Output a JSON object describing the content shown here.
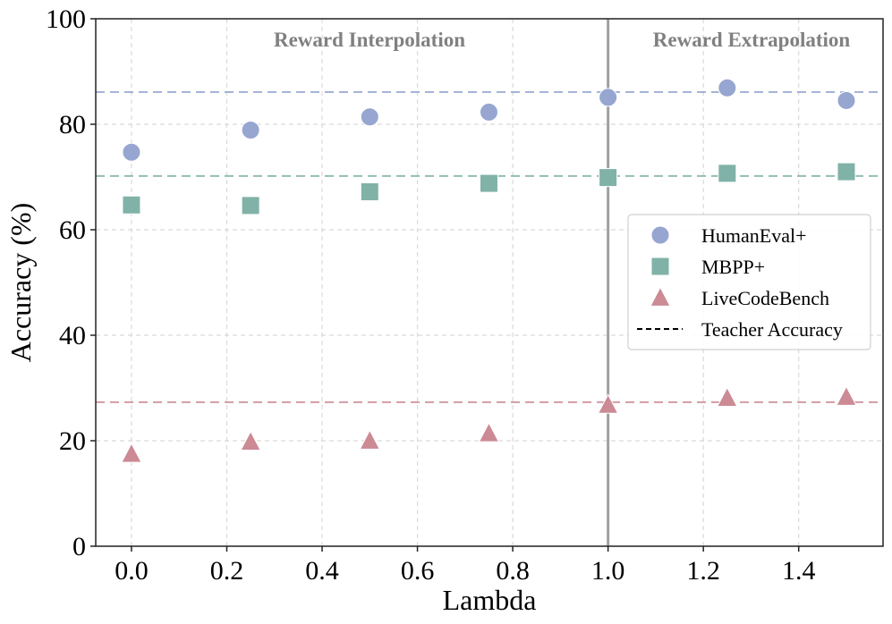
{
  "chart_data": {
    "type": "scatter",
    "title": "",
    "xlabel": "Lambda",
    "ylabel": "Accuracy (%)",
    "xlim": [
      -0.075,
      1.577
    ],
    "ylim": [
      0,
      100
    ],
    "grid": true,
    "x_ticks": [
      0.0,
      0.2,
      0.4,
      0.6,
      0.8,
      1.0,
      1.2,
      1.4
    ],
    "x_tick_labels": [
      "0.0",
      "0.2",
      "0.4",
      "0.6",
      "0.8",
      "1.0",
      "1.2",
      "1.4"
    ],
    "y_ticks": [
      0,
      20,
      40,
      60,
      80,
      100
    ],
    "y_tick_labels": [
      "0",
      "20",
      "40",
      "60",
      "80",
      "100"
    ],
    "x": [
      0.0,
      0.25,
      0.5,
      0.75,
      1.0,
      1.25,
      1.5
    ],
    "series": [
      {
        "name": "HumanEval+",
        "marker": "circle",
        "color": "#96a6d0",
        "values": [
          74.7,
          78.9,
          81.4,
          82.3,
          85.1,
          86.9,
          84.5
        ],
        "teacher": 86.1
      },
      {
        "name": "MBPP+",
        "marker": "square",
        "color": "#80b2a8",
        "values": [
          64.7,
          64.6,
          67.2,
          68.8,
          69.9,
          70.7,
          71.0
        ],
        "teacher": 70.2
      },
      {
        "name": "LiveCodeBench",
        "marker": "triangle",
        "color": "#cc8a95",
        "values": [
          17.5,
          19.8,
          20.0,
          21.4,
          26.8,
          28.1,
          28.3
        ],
        "teacher": 27.3
      }
    ],
    "teacher_legend_label": "Teacher Accuracy",
    "divider_x": 1.0,
    "divider_color": "#a0a0a0",
    "annotations": [
      {
        "text": "Reward Interpolation",
        "position": "top-left region"
      },
      {
        "text": "Reward Extrapolation",
        "position": "top-right region"
      }
    ],
    "legend_position": "center-right"
  }
}
